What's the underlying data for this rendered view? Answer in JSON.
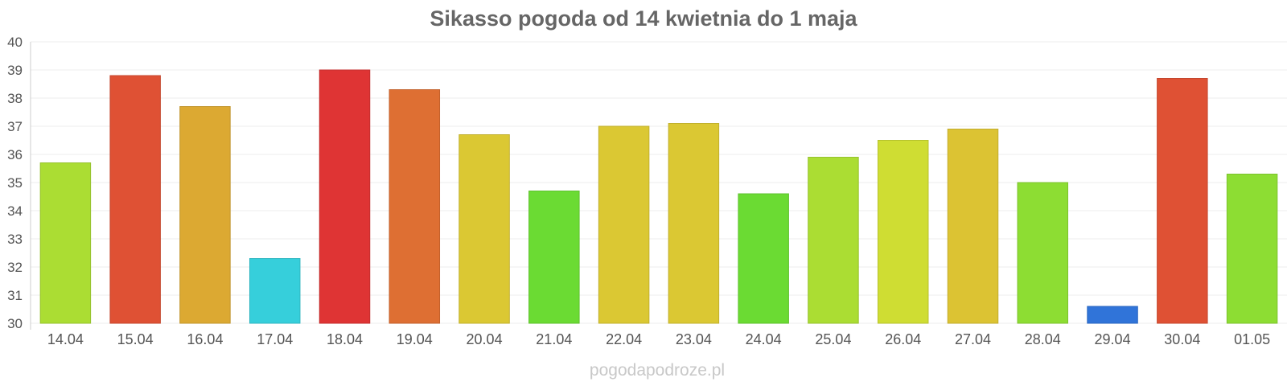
{
  "chart_data": {
    "type": "bar",
    "title": "Sikasso pogoda od 14 kwietnia do 1 maja",
    "xlabel": "",
    "ylabel": "",
    "ylim": [
      30,
      40
    ],
    "yticks": [
      30,
      31,
      32,
      33,
      34,
      35,
      36,
      37,
      38,
      39,
      40
    ],
    "grid": true,
    "categories": [
      "14.04",
      "15.04",
      "16.04",
      "17.04",
      "18.04",
      "19.04",
      "20.04",
      "21.04",
      "22.04",
      "23.04",
      "24.04",
      "25.04",
      "26.04",
      "27.04",
      "28.04",
      "29.04",
      "30.04",
      "01.05"
    ],
    "values": [
      35.7,
      38.8,
      37.7,
      32.3,
      39.0,
      38.3,
      36.7,
      34.7,
      37.0,
      37.1,
      34.6,
      35.9,
      36.5,
      36.9,
      35.0,
      30.6,
      38.7,
      35.3
    ],
    "colors": [
      "#abdd33",
      "#df5134",
      "#dca932",
      "#36cfdb",
      "#df3434",
      "#de6f33",
      "#dbc833",
      "#6bdb33",
      "#dbc833",
      "#dbc833",
      "#6bdb33",
      "#abdd33",
      "#cfdd33",
      "#dcc333",
      "#8ddd33",
      "#3074d9",
      "#df5134",
      "#8ddd33"
    ]
  },
  "watermark": "pogodapodroze.pl"
}
